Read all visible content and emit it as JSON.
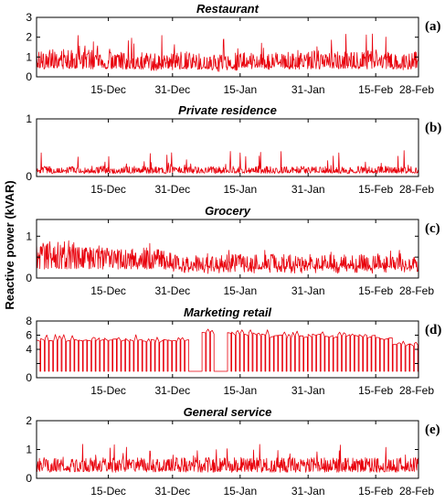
{
  "figure": {
    "ylabel": "Reactive power (kVAR)"
  },
  "chart_data": [
    {
      "type": "line",
      "title": "Restaurant",
      "panel_label": "(a)",
      "xlabel": "",
      "ylabel": "",
      "x_ticks": [
        "15-Dec",
        "31-Dec",
        "15-Jan",
        "31-Jan",
        "15-Feb",
        "28-Feb"
      ],
      "ylim": [
        0,
        3
      ],
      "y_ticks": [
        0,
        1,
        2,
        3
      ],
      "series": [
        {
          "color": "#e8000b",
          "base": 0.55,
          "spread": 0.9,
          "spike": 1.3,
          "values": [
            0.9,
            1.0,
            0.9,
            0.95,
            1.0,
            0.85,
            0.8,
            0.8,
            0.75,
            0.8,
            0.85,
            0.8,
            0.7,
            0.7,
            0.75,
            0.8,
            0.85,
            0.8,
            0.85,
            0.9,
            0.9,
            0.85,
            0.9,
            0.85,
            0.95,
            0.9,
            0.8,
            0.85
          ]
        }
      ]
    },
    {
      "type": "line",
      "title": "Private residence",
      "panel_label": "(b)",
      "xlabel": "",
      "ylabel": "",
      "x_ticks": [
        "15-Dec",
        "31-Dec",
        "15-Jan",
        "31-Jan",
        "15-Feb",
        "28-Feb"
      ],
      "ylim": [
        0,
        1
      ],
      "y_ticks": [
        0,
        1
      ],
      "series": [
        {
          "color": "#e8000b",
          "base": 0.08,
          "spread": 0.12,
          "spike": 0.35,
          "values": [
            0.12,
            0.11,
            0.12,
            0.11,
            0.12,
            0.11,
            0.12,
            0.12,
            0.11,
            0.12,
            0.12,
            0.11,
            0.12,
            0.11,
            0.12,
            0.11,
            0.12,
            0.11,
            0.12,
            0.12,
            0.11,
            0.12,
            0.11,
            0.12,
            0.11,
            0.12,
            0.11,
            0.12
          ]
        }
      ]
    },
    {
      "type": "line",
      "title": "Grocery",
      "panel_label": "(c)",
      "xlabel": "",
      "ylabel": "",
      "x_ticks": [
        "15-Dec",
        "31-Dec",
        "15-Jan",
        "31-Jan",
        "15-Feb",
        "28-Feb"
      ],
      "ylim": [
        0,
        1.4
      ],
      "y_ticks": [
        0,
        0.5,
        1
      ],
      "y_tick_labels": [
        "0",
        "",
        "1"
      ],
      "series": [
        {
          "color": "#e8000b",
          "base": 0.3,
          "spread": 0.45,
          "spike": 0.35,
          "values": [
            0.62,
            0.6,
            0.58,
            0.55,
            0.55,
            0.52,
            0.5,
            0.48,
            0.5,
            0.42,
            0.35,
            0.32,
            0.33,
            0.34,
            0.35,
            0.33,
            0.34,
            0.35,
            0.34,
            0.33,
            0.35,
            0.34,
            0.33,
            0.34,
            0.33,
            0.34,
            0.36,
            0.38
          ]
        }
      ]
    },
    {
      "type": "line",
      "title": "Marketing retail",
      "panel_label": "(d)",
      "xlabel": "",
      "ylabel": "",
      "x_ticks": [
        "15-Dec",
        "31-Dec",
        "15-Jan",
        "31-Jan",
        "15-Feb",
        "28-Feb"
      ],
      "ylim": [
        0,
        8
      ],
      "y_ticks": [
        0,
        2,
        4,
        6,
        8
      ],
      "y_tick_labels": [
        "0",
        "",
        "4",
        "6",
        "8"
      ],
      "series": [
        {
          "color": "#e8000b",
          "kind": "square",
          "low": 0.9,
          "values": [
            5.3,
            5.4,
            5.3,
            5.3,
            5.4,
            5.3,
            5.3,
            5.3,
            5.2,
            5.2,
            5.2,
            0.9,
            6.3,
            0.9,
            6.2,
            6.1,
            6.0,
            5.9,
            5.8,
            5.9,
            6.0,
            5.8,
            6.0,
            5.9,
            5.8,
            5.6,
            4.7,
            4.6
          ]
        }
      ]
    },
    {
      "type": "line",
      "title": "General service",
      "panel_label": "(e)",
      "xlabel": "",
      "ylabel": "",
      "x_ticks": [
        "15-Dec",
        "31-Dec",
        "15-Jan",
        "31-Jan",
        "15-Feb",
        "28-Feb"
      ],
      "ylim": [
        0,
        2
      ],
      "y_ticks": [
        0,
        1,
        2
      ],
      "series": [
        {
          "color": "#e8000b",
          "base": 0.3,
          "spread": 0.45,
          "spike": 0.7,
          "values": [
            0.5,
            0.5,
            0.5,
            0.5,
            0.5,
            0.5,
            0.5,
            0.5,
            0.5,
            0.5,
            0.5,
            0.5,
            0.5,
            0.5,
            0.5,
            0.5,
            0.5,
            0.5,
            0.5,
            0.5,
            0.5,
            0.5,
            0.5,
            0.5,
            0.5,
            0.5,
            0.5,
            0.5
          ]
        }
      ]
    }
  ]
}
